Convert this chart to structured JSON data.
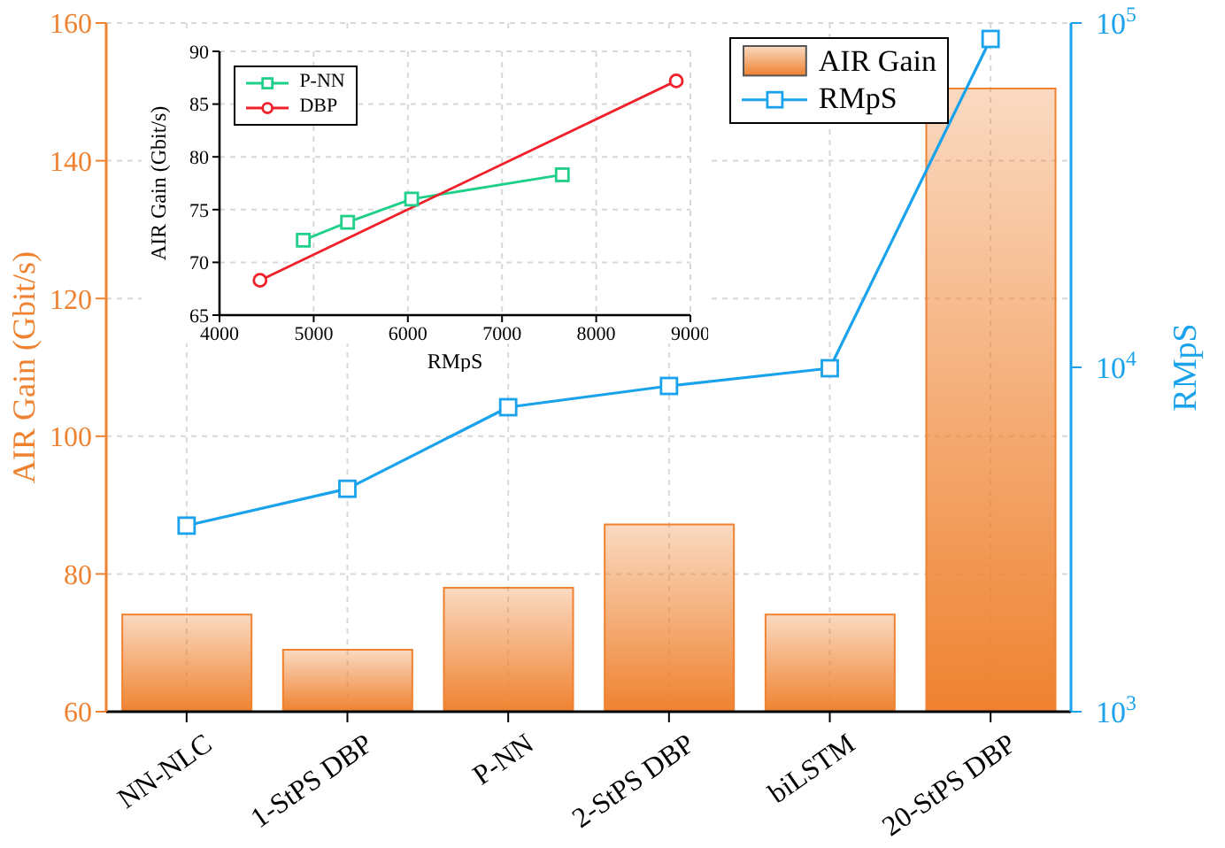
{
  "chart_data": [
    {
      "type": "bar",
      "categories": [
        "NN-NLC",
        "1-StPS DBP",
        "P-NN",
        "2-StPS DBP",
        "biLSTM",
        "20-StPS DBP"
      ],
      "series": [
        {
          "name": "AIR Gain",
          "type": "bar",
          "color": "#ef8230",
          "values": [
            74.1,
            69.0,
            78.0,
            87.2,
            74.1,
            150.5
          ]
        },
        {
          "name": "RMpS",
          "type": "line",
          "axis": "y2",
          "color": "#1aa3ec",
          "marker": "square",
          "values": [
            3470,
            4440,
            7660,
            8830,
            9940,
            89900
          ]
        }
      ],
      "ylabel": "AIR Gain (Gbit/s)",
      "y2label": "RMpS",
      "ylim": [
        60,
        160
      ],
      "yticks": [
        60,
        80,
        100,
        120,
        140,
        160
      ],
      "y2lim": [
        1000,
        100000
      ],
      "y2ticks": [
        {
          "value": 1000,
          "label": "10$^{3}$"
        },
        {
          "value": 10000,
          "label": "10$^{4}$"
        },
        {
          "value": 100000,
          "label": "10$^{5}$"
        }
      ],
      "log": "y2",
      "grid": true,
      "legend": "top right"
    },
    {
      "type": "line",
      "xlabel": "RMpS",
      "ylabel": "AIR Gain (Gbit/s)",
      "series": [
        {
          "name": "P-NN",
          "color": "#1fcf8a",
          "marker": "square",
          "x": [
            4890,
            5360,
            6040,
            7640
          ],
          "values": [
            72.1,
            73.8,
            76.0,
            78.3
          ]
        },
        {
          "name": "DBP",
          "color": "#f0202a",
          "marker": "circle",
          "x": [
            4430,
            8850
          ],
          "values": [
            68.3,
            87.2
          ]
        }
      ],
      "xlim": [
        4000,
        9000
      ],
      "xticks": [
        4000,
        5000,
        6000,
        7000,
        8000,
        9000
      ],
      "ylim": [
        65,
        90
      ],
      "yticks": [
        65,
        70,
        75,
        80,
        85,
        90
      ],
      "grid": true,
      "legend": "top left"
    }
  ]
}
